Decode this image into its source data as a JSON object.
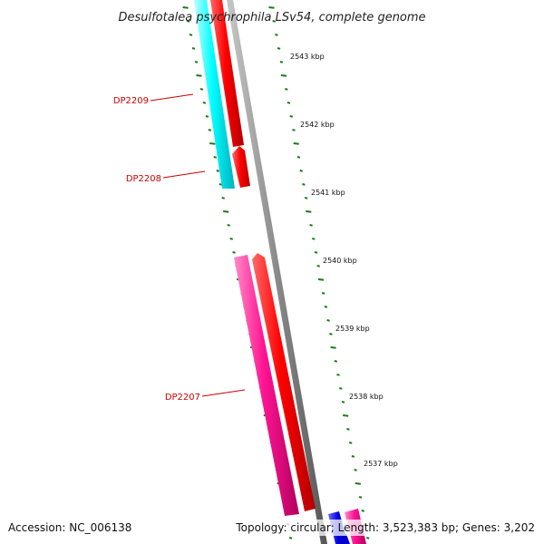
{
  "title": "Desulfotalea psychrophila LSv54, complete genome",
  "footer": {
    "accession": "Accession: NC_006138",
    "topology": "Topology: circular; Length: 3,523,383 bp; Genes: 3,202"
  },
  "scale_labels": [
    "2543 kbp",
    "2542 kbp",
    "2541 kbp",
    "2540 kbp",
    "2539 kbp",
    "2538 kbp",
    "2537 kbp"
  ],
  "gene_labels": [
    "DP2209",
    "DP2208",
    "DP2207"
  ],
  "colors": {
    "ruler_ticks": "#1a7a1a",
    "backbone": "#808080",
    "forward_gene": "#ff0000",
    "reverse_gene_cyan": "#00ffff",
    "reverse_gene_pink": "#ff1493",
    "label_red": "#cc0000",
    "blue_gene": "#0000cc"
  }
}
